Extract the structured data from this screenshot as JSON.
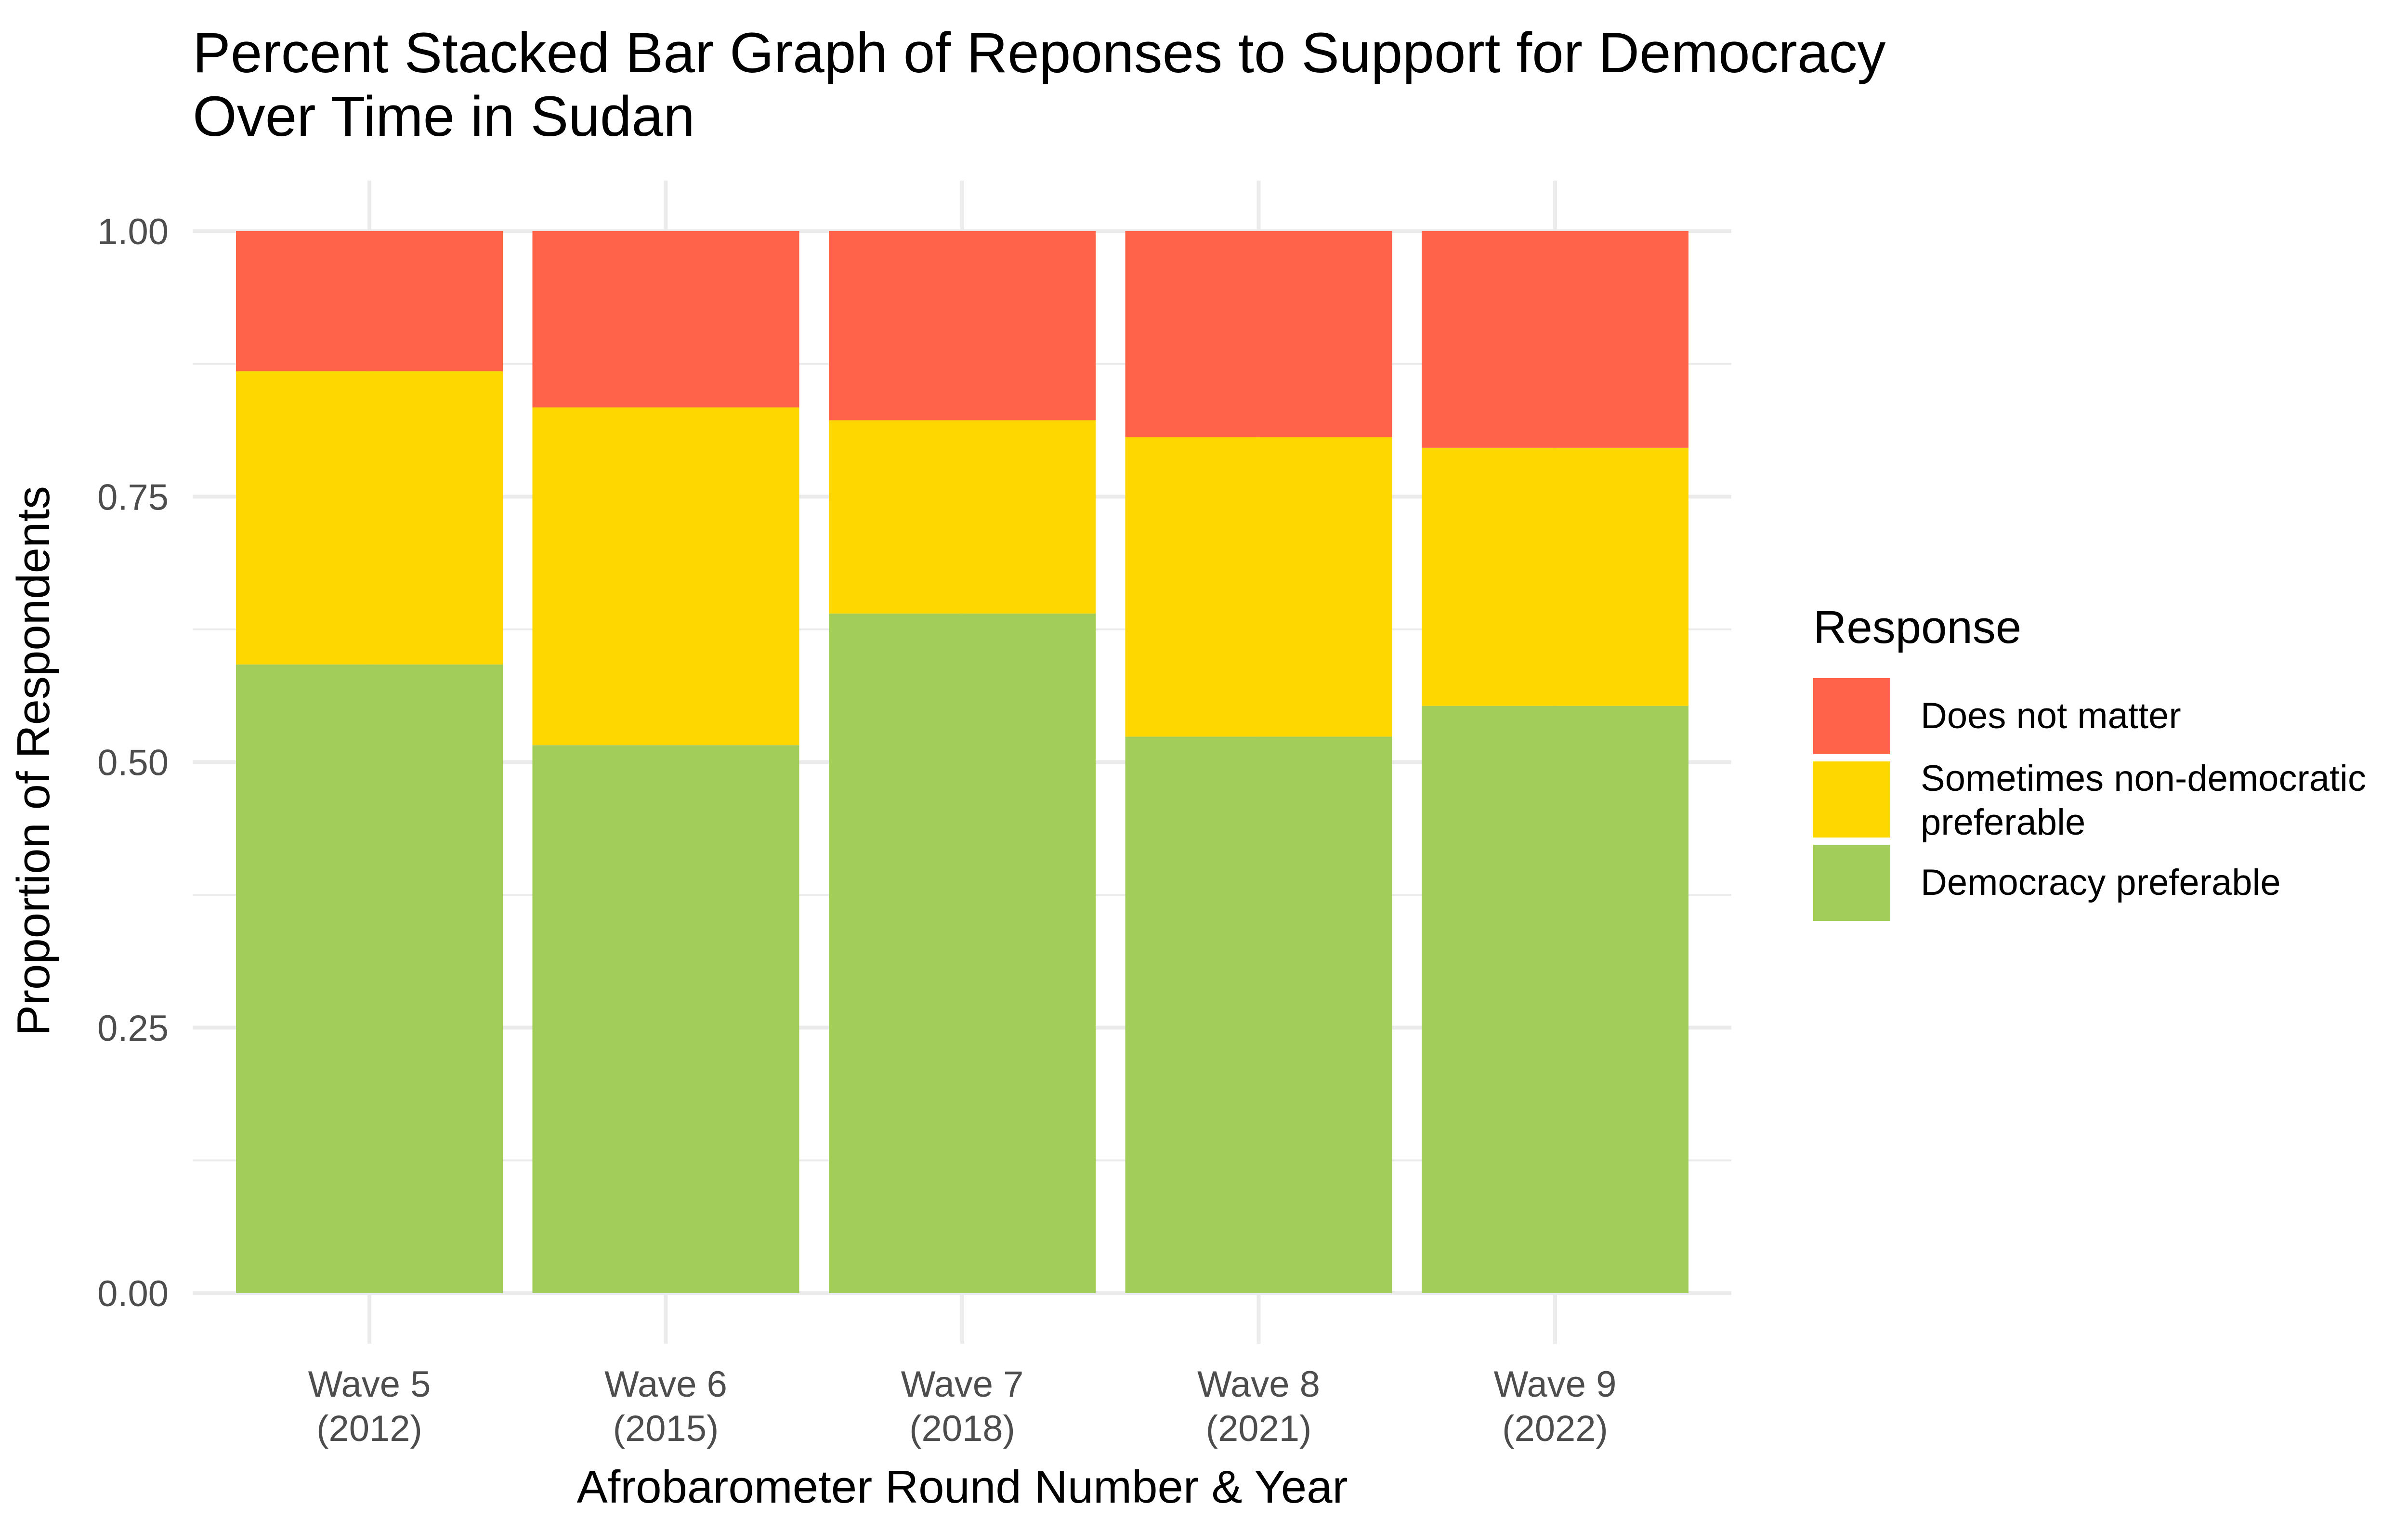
{
  "chart_data": {
    "type": "bar",
    "stacked": "percent",
    "title_lines": [
      "Percent Stacked Bar Graph of Reponses to Support for Democracy",
      "Over Time in Sudan"
    ],
    "xlabel": "Afrobarometer Round Number & Year",
    "ylabel": "Proportion of Respondents",
    "ylim": [
      0,
      1
    ],
    "yticks": [
      "0.00",
      "0.25",
      "0.50",
      "0.75",
      "1.00"
    ],
    "grid": true,
    "categories": [
      [
        "Wave 5",
        "(2012)"
      ],
      [
        "Wave 6",
        "(2015)"
      ],
      [
        "Wave 7",
        "(2018)"
      ],
      [
        "Wave 8",
        "(2021)"
      ],
      [
        "Wave 9",
        "(2022)"
      ]
    ],
    "series": [
      {
        "name": "Democracy preferable",
        "color": "#a3cd5b",
        "values": [
          0.592,
          0.516,
          0.64,
          0.524,
          0.553
        ]
      },
      {
        "name": "Sometimes non-democratic preferable",
        "legend_lines": [
          "Sometimes non-democratic",
          "preferable"
        ],
        "color": "#ffd700",
        "values": [
          0.276,
          0.318,
          0.182,
          0.282,
          0.243
        ]
      },
      {
        "name": "Does not matter",
        "color": "#ff644a",
        "values": [
          0.132,
          0.166,
          0.178,
          0.194,
          0.204
        ]
      }
    ],
    "legend": {
      "title": "Response",
      "placement": "right",
      "order": [
        "Does not matter",
        "Sometimes non-democratic preferable",
        "Democracy preferable"
      ]
    }
  }
}
